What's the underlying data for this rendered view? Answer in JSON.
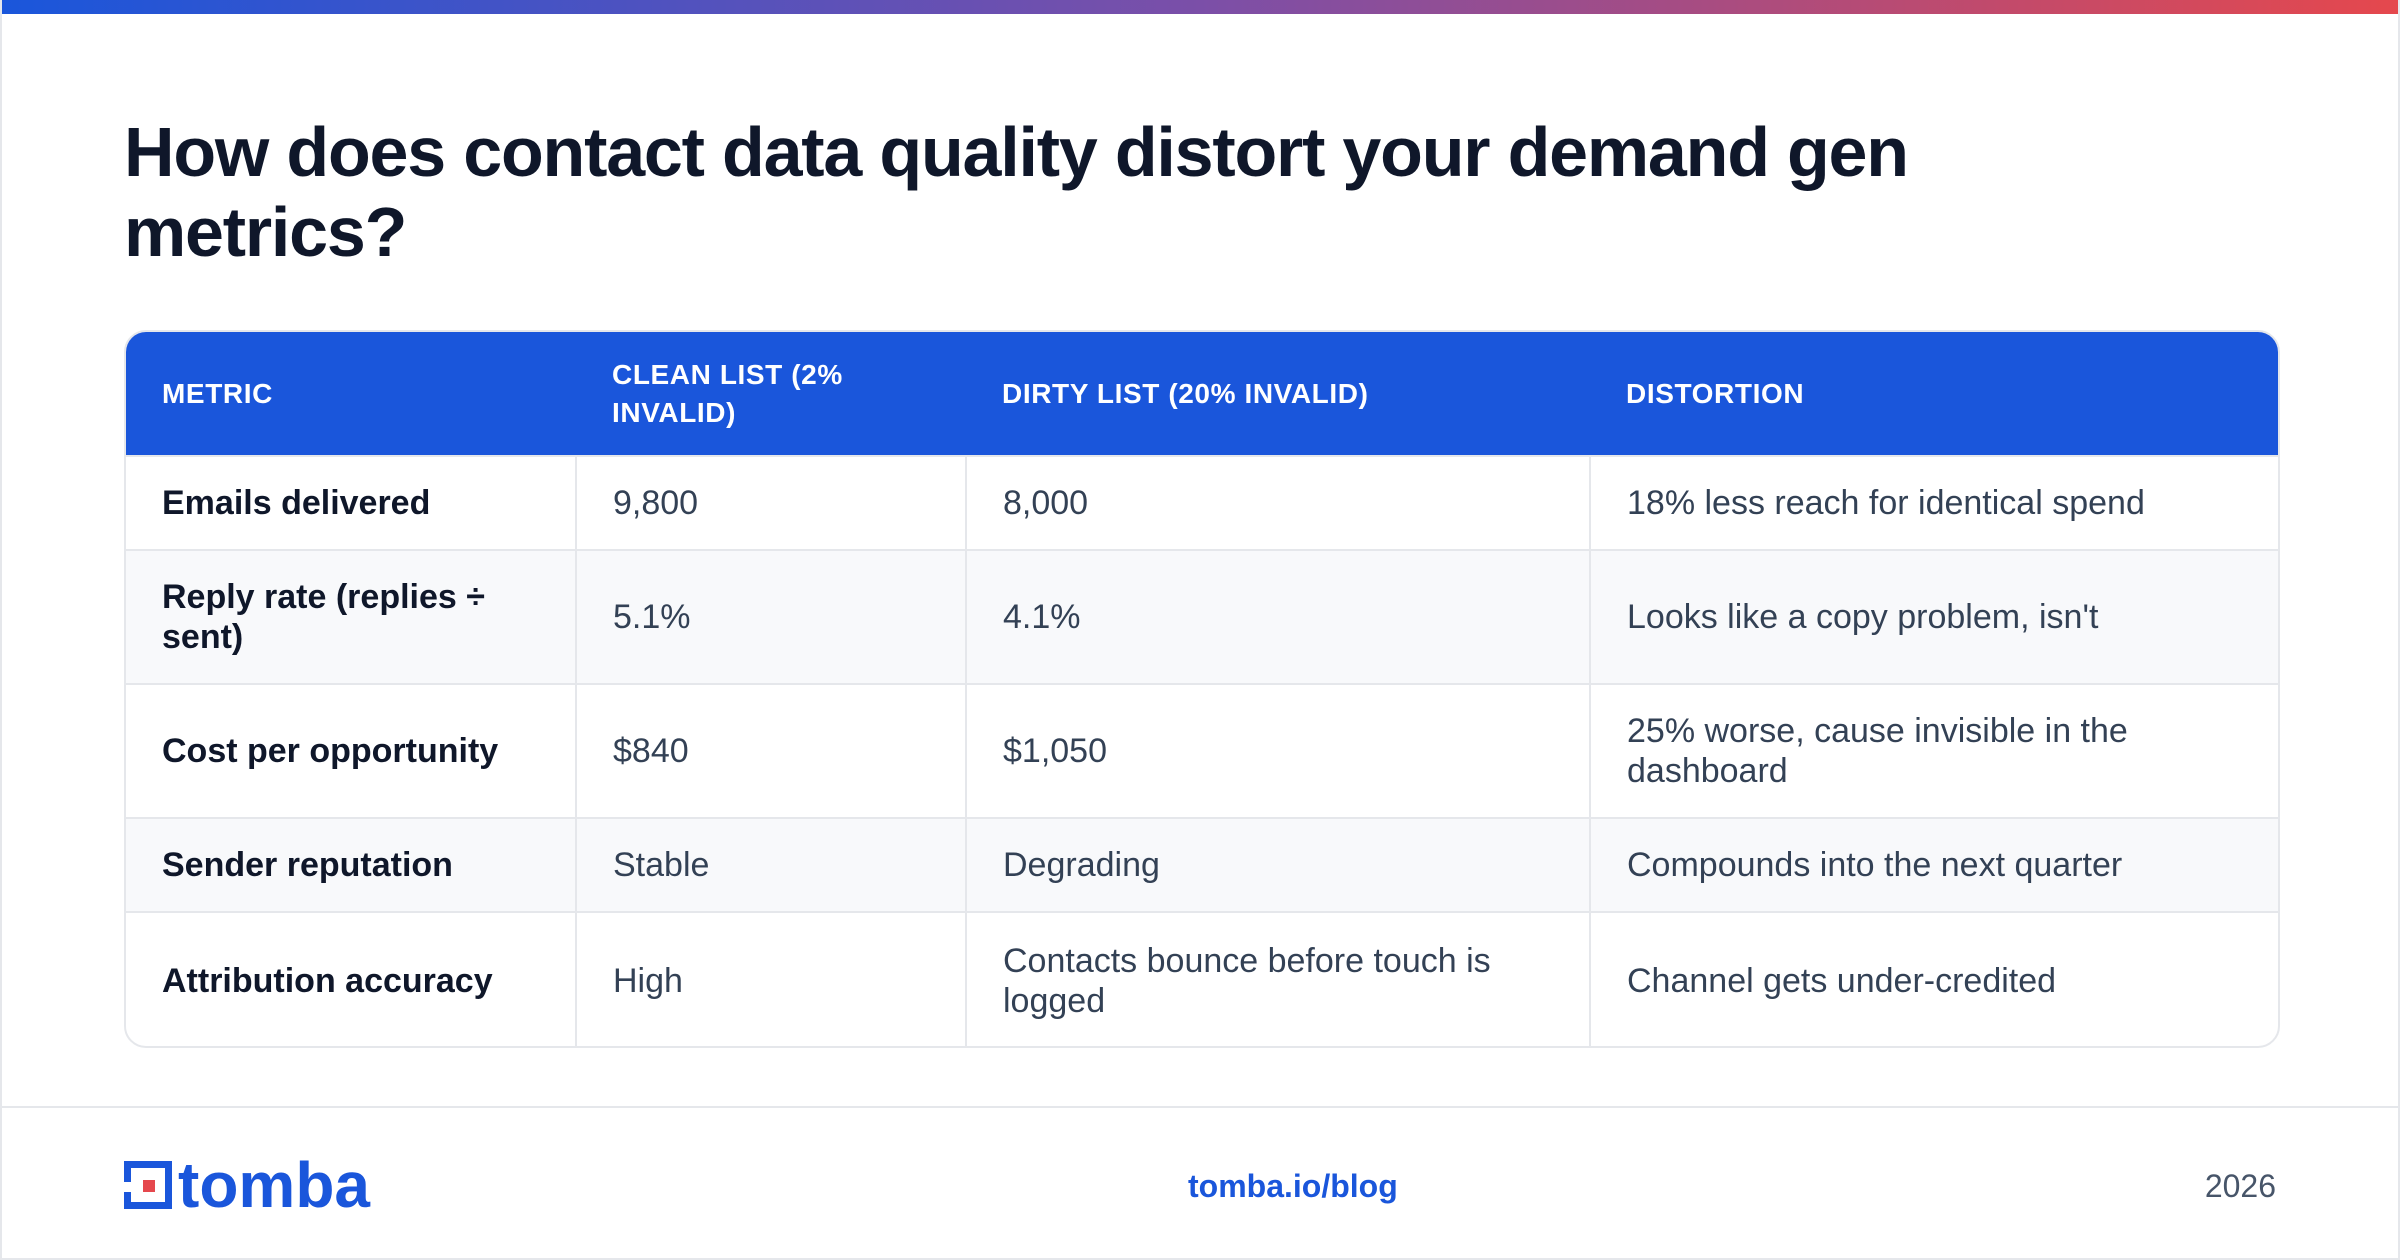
{
  "page": {
    "title": "How does contact data quality distort your demand gen metrics?"
  },
  "table": {
    "headers": [
      "METRIC",
      "CLEAN LIST (2% INVALID)",
      "DIRTY LIST (20% INVALID)",
      "DISTORTION"
    ],
    "rows": [
      [
        "Emails delivered",
        "9,800",
        "8,000",
        "18% less reach for identical spend"
      ],
      [
        "Reply rate (replies ÷ sent)",
        "5.1%",
        "4.1%",
        "Looks like a copy problem, isn't"
      ],
      [
        "Cost per opportunity",
        "$840",
        "$1,050",
        "25% worse, cause invisible in the dashboard"
      ],
      [
        "Sender reputation",
        "Stable",
        "Degrading",
        "Compounds into the next quarter"
      ],
      [
        "Attribution accuracy",
        "High",
        "Contacts bounce before touch is logged",
        "Channel gets under-credited"
      ]
    ]
  },
  "footer": {
    "logo_text": "tomba",
    "link": "tomba.io/blog",
    "year": "2026"
  },
  "colors": {
    "accent": "#1a56db",
    "brand_red": "#e5484d",
    "gradient": [
      "#1a56db",
      "#7b4fa8",
      "#e5484d"
    ]
  },
  "icons": {
    "logo": "tomba-logo-icon"
  }
}
